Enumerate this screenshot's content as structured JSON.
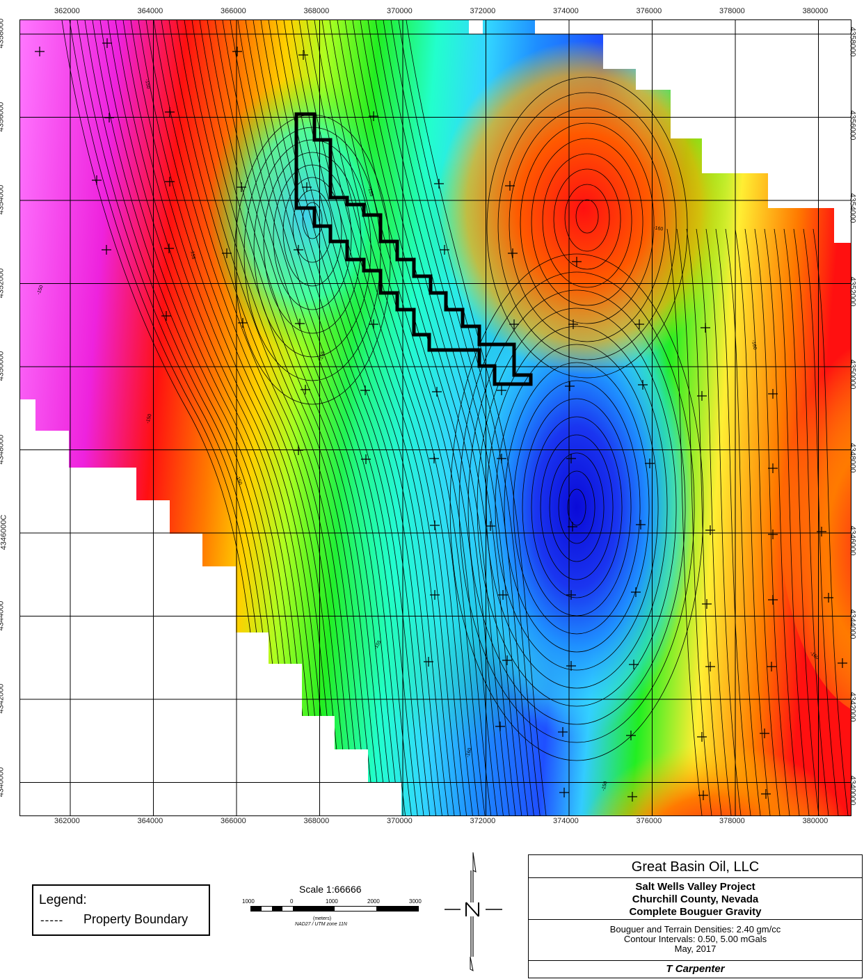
{
  "map": {
    "x_ticks": [
      "362000",
      "364000",
      "366000",
      "368000",
      "370000",
      "372000",
      "374000",
      "376000",
      "378000",
      "380000"
    ],
    "y_ticks": [
      "4358000",
      "4356000",
      "4354000",
      "4352000",
      "4350000",
      "4348000",
      "4346000",
      "4344000",
      "4342000",
      "4340000"
    ],
    "y_ticks_left": [
      "4358000",
      "4356000",
      "4354000",
      "4352000",
      "4350000",
      "4348000",
      "4346000C",
      "4344000",
      "4342000",
      "4340000"
    ],
    "contour_labels": [
      "-150",
      "-150",
      "-155",
      "-160",
      "-155",
      "-160",
      "-150",
      "-155",
      "-150",
      "-160",
      "-155",
      "-160",
      "-150"
    ],
    "gravity_palette": [
      "#ff66ff",
      "#ee22dd",
      "#ff1010",
      "#ff7a00",
      "#ffc800",
      "#ffff33",
      "#aaff22",
      "#22ee22",
      "#22ffcc",
      "#33d6ff",
      "#1e8eff",
      "#1f4fff",
      "#1212dd"
    ],
    "property_boundary_color": "#000000"
  },
  "legend": {
    "title": "Legend:",
    "line_symbol": "-----",
    "item": "Property Boundary"
  },
  "scale": {
    "title": "Scale 1:66666",
    "numbers": [
      "1000",
      "0",
      "1000",
      "2000",
      "3000"
    ],
    "units": "(meters)",
    "projection": "NAD27 / UTM zone 11N"
  },
  "title_block": {
    "company": "Great Basin Oil, LLC",
    "project_lines": [
      "Salt Wells Valley Project",
      "Churchill County, Nevada",
      "Complete Bouguer Gravity"
    ],
    "param_lines": [
      "Bouguer and Terrain Densities: 2.40 gm/cc",
      "Contour Intervals:  0.50, 5.00 mGals",
      "May, 2017"
    ],
    "author": "T Carpenter"
  }
}
